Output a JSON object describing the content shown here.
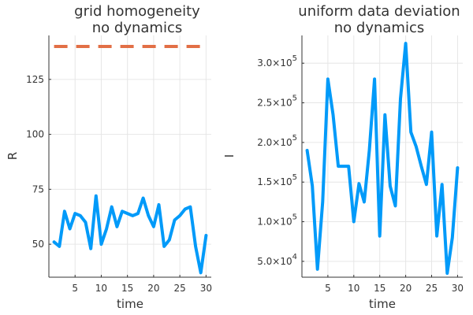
{
  "chart_data": [
    {
      "type": "line",
      "title": "grid homogeneity",
      "subtitle": "no dynamics",
      "xlabel": "time",
      "ylabel": "R",
      "xlim": [
        0,
        31
      ],
      "ylim": [
        35,
        145
      ],
      "xticks": [
        5,
        10,
        15,
        20,
        25,
        30
      ],
      "xtick_labels": [
        "5",
        "10",
        "15",
        "20",
        "25",
        "30"
      ],
      "yticks": [
        50,
        75,
        100,
        125
      ],
      "ytick_labels": [
        "50",
        "75",
        "100",
        "125"
      ],
      "grid": true,
      "legend": "none",
      "series": [
        {
          "color": "#009af9",
          "style": "solid",
          "x": [
            1,
            2,
            3,
            4,
            5,
            6,
            7,
            8,
            9,
            10,
            11,
            12,
            13,
            14,
            15,
            16,
            17,
            18,
            19,
            20,
            21,
            22,
            23,
            24,
            25,
            26,
            27,
            28,
            29,
            30
          ],
          "values": [
            51,
            49,
            65,
            57,
            64,
            63,
            60,
            48,
            72,
            50,
            57,
            67,
            58,
            65,
            64,
            63,
            64,
            71,
            63,
            58,
            68,
            49,
            52,
            61,
            63,
            66,
            67,
            49,
            37,
            54
          ]
        },
        {
          "color": "#e26f46",
          "style": "dashed",
          "x": [
            1,
            30
          ],
          "values": [
            140,
            140
          ]
        }
      ]
    },
    {
      "type": "line",
      "title": "uniform data deviation",
      "subtitle": "no dynamics",
      "xlabel": "time",
      "ylabel": "I",
      "xlim": [
        0,
        31
      ],
      "ylim": [
        30000,
        335000
      ],
      "xticks": [
        5,
        10,
        15,
        20,
        25,
        30
      ],
      "xtick_labels": [
        "5",
        "10",
        "15",
        "20",
        "25",
        "30"
      ],
      "yticks": [
        50000,
        100000,
        150000,
        200000,
        250000,
        300000
      ],
      "ytick_labels": [
        {
          "mantissa": "5.0×10",
          "exponent": "4"
        },
        {
          "mantissa": "1.0×10",
          "exponent": "5"
        },
        {
          "mantissa": "1.5×10",
          "exponent": "5"
        },
        {
          "mantissa": "2.0×10",
          "exponent": "5"
        },
        {
          "mantissa": "2.5×10",
          "exponent": "5"
        },
        {
          "mantissa": "3.0×10",
          "exponent": "5"
        }
      ],
      "grid": true,
      "legend": "none",
      "series": [
        {
          "color": "#009af9",
          "style": "solid",
          "x": [
            1,
            2,
            3,
            4,
            5,
            6,
            7,
            8,
            9,
            10,
            11,
            12,
            13,
            14,
            15,
            16,
            17,
            18,
            19,
            20,
            21,
            22,
            23,
            24,
            25,
            26,
            27,
            28,
            29,
            30
          ],
          "values": [
            190000,
            145000,
            40000,
            125000,
            280000,
            235000,
            170000,
            170000,
            170000,
            100000,
            148000,
            125000,
            190000,
            280000,
            82000,
            235000,
            145000,
            120000,
            255000,
            325000,
            213000,
            195000,
            170000,
            147000,
            213000,
            82000,
            147000,
            35000,
            80000,
            168000
          ]
        }
      ]
    }
  ]
}
